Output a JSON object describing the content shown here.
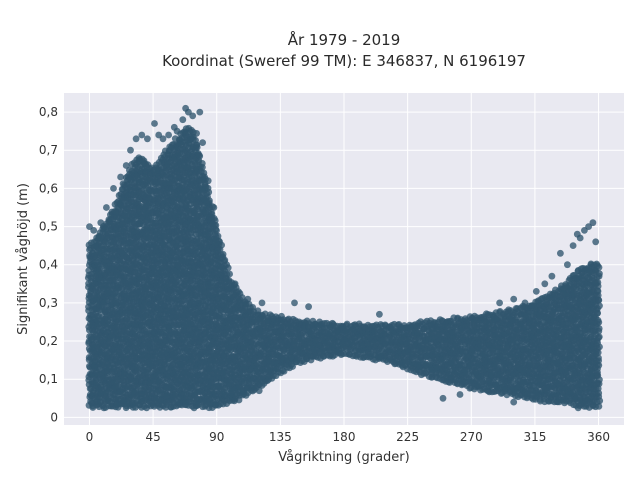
{
  "chart_data": {
    "type": "scatter",
    "title": "År 1979 - 2019",
    "subtitle": "Koordinat (Sweref 99 TM): E 346837, N 6196197",
    "xlabel": "Vågriktning (grader)",
    "ylabel": "Signifikant våghöjd (m)",
    "xlim": [
      -18,
      378
    ],
    "ylim": [
      -0.02,
      0.85
    ],
    "xticks": [
      0,
      45,
      90,
      135,
      180,
      225,
      270,
      315,
      360
    ],
    "xtick_labels": [
      "0",
      "45",
      "90",
      "135",
      "180",
      "225",
      "270",
      "315",
      "360"
    ],
    "yticks": [
      0,
      0.1,
      0.2,
      0.3,
      0.4,
      0.5,
      0.6,
      0.7,
      0.8
    ],
    "ytick_labels": [
      "0",
      "0,1",
      "0,2",
      "0,3",
      "0,4",
      "0,5",
      "0,6",
      "0,7",
      "0,8"
    ],
    "grid": true,
    "marker_color": "#31566e",
    "plot_background": "#e9e9f1",
    "envelope": {
      "x": [
        0,
        5,
        10,
        15,
        20,
        25,
        30,
        35,
        40,
        45,
        50,
        55,
        60,
        65,
        70,
        75,
        80,
        85,
        90,
        95,
        100,
        110,
        120,
        135,
        150,
        180,
        210,
        225,
        240,
        270,
        285,
        300,
        315,
        330,
        340,
        345,
        350,
        355,
        360
      ],
      "upper": [
        0.45,
        0.47,
        0.5,
        0.53,
        0.57,
        0.62,
        0.66,
        0.68,
        0.67,
        0.65,
        0.67,
        0.7,
        0.72,
        0.74,
        0.76,
        0.74,
        0.66,
        0.58,
        0.5,
        0.42,
        0.36,
        0.3,
        0.27,
        0.26,
        0.25,
        0.24,
        0.24,
        0.24,
        0.25,
        0.26,
        0.27,
        0.28,
        0.3,
        0.33,
        0.36,
        0.38,
        0.39,
        0.4,
        0.4
      ],
      "lower": [
        0.03,
        0.03,
        0.03,
        0.03,
        0.03,
        0.03,
        0.03,
        0.03,
        0.03,
        0.03,
        0.03,
        0.03,
        0.03,
        0.03,
        0.03,
        0.03,
        0.03,
        0.03,
        0.03,
        0.04,
        0.04,
        0.06,
        0.08,
        0.12,
        0.15,
        0.17,
        0.15,
        0.13,
        0.11,
        0.08,
        0.07,
        0.06,
        0.05,
        0.04,
        0.04,
        0.03,
        0.03,
        0.03,
        0.03
      ]
    },
    "outliers": [
      {
        "x": 0,
        "y": 0.5
      },
      {
        "x": 3,
        "y": 0.49
      },
      {
        "x": 8,
        "y": 0.51
      },
      {
        "x": 12,
        "y": 0.55
      },
      {
        "x": 17,
        "y": 0.6
      },
      {
        "x": 22,
        "y": 0.63
      },
      {
        "x": 26,
        "y": 0.66
      },
      {
        "x": 29,
        "y": 0.7
      },
      {
        "x": 33,
        "y": 0.73
      },
      {
        "x": 37,
        "y": 0.74
      },
      {
        "x": 41,
        "y": 0.73
      },
      {
        "x": 46,
        "y": 0.77
      },
      {
        "x": 49,
        "y": 0.74
      },
      {
        "x": 52,
        "y": 0.73
      },
      {
        "x": 56,
        "y": 0.74
      },
      {
        "x": 60,
        "y": 0.76
      },
      {
        "x": 62,
        "y": 0.75
      },
      {
        "x": 66,
        "y": 0.78
      },
      {
        "x": 68,
        "y": 0.81
      },
      {
        "x": 70,
        "y": 0.8
      },
      {
        "x": 73,
        "y": 0.79
      },
      {
        "x": 78,
        "y": 0.8
      },
      {
        "x": 80,
        "y": 0.72
      },
      {
        "x": 84,
        "y": 0.62
      },
      {
        "x": 88,
        "y": 0.55
      },
      {
        "x": 92,
        "y": 0.46
      },
      {
        "x": 97,
        "y": 0.4
      },
      {
        "x": 103,
        "y": 0.35
      },
      {
        "x": 112,
        "y": 0.31
      },
      {
        "x": 122,
        "y": 0.3
      },
      {
        "x": 145,
        "y": 0.3
      },
      {
        "x": 155,
        "y": 0.29
      },
      {
        "x": 205,
        "y": 0.27
      },
      {
        "x": 290,
        "y": 0.3
      },
      {
        "x": 300,
        "y": 0.31
      },
      {
        "x": 308,
        "y": 0.3
      },
      {
        "x": 316,
        "y": 0.33
      },
      {
        "x": 322,
        "y": 0.35
      },
      {
        "x": 327,
        "y": 0.37
      },
      {
        "x": 333,
        "y": 0.43
      },
      {
        "x": 338,
        "y": 0.4
      },
      {
        "x": 342,
        "y": 0.45
      },
      {
        "x": 345,
        "y": 0.48
      },
      {
        "x": 347,
        "y": 0.47
      },
      {
        "x": 350,
        "y": 0.49
      },
      {
        "x": 353,
        "y": 0.5
      },
      {
        "x": 356,
        "y": 0.51
      },
      {
        "x": 358,
        "y": 0.46
      },
      {
        "x": 250,
        "y": 0.05
      },
      {
        "x": 262,
        "y": 0.06
      },
      {
        "x": 300,
        "y": 0.04
      },
      {
        "x": 120,
        "y": 0.07
      }
    ]
  }
}
